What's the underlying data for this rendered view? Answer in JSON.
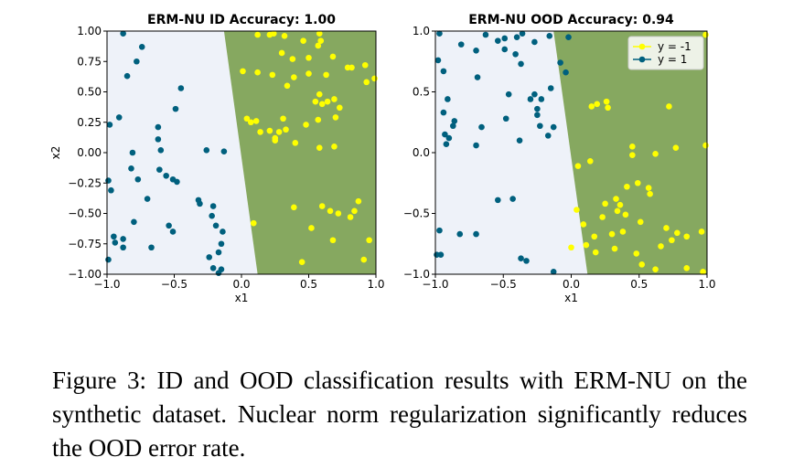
{
  "colors": {
    "yellow_class": "#ffff00",
    "blue_class": "#00607e",
    "region_pos": "#eef2f9",
    "region_neg": "#86a860"
  },
  "caption": "Figure 3: ID and OOD classification results with ERM-NU on the synthetic dataset. Nuclear norm regularization significantly reduces the OOD error rate.",
  "chart_data": [
    {
      "type": "scatter",
      "title": "ERM-NU ID Accuracy: 1.00",
      "xlabel": "x1",
      "ylabel": "x2",
      "xlim": [
        -1.0,
        1.0
      ],
      "ylim": [
        -1.0,
        1.0
      ],
      "xticks": [
        "−1.0",
        "−0.5",
        "0.0",
        "0.5",
        "1.0"
      ],
      "yticks": [
        "−1.00",
        "−0.75",
        "−0.50",
        "−0.25",
        "0.00",
        "0.25",
        "0.50",
        "0.75",
        "1.00"
      ],
      "ytick_values": [
        -1.0,
        -0.75,
        -0.5,
        -0.25,
        0.0,
        0.25,
        0.5,
        0.75,
        1.0
      ],
      "grid": false,
      "decision_boundary": {
        "top_x": -0.13,
        "bottom_x": 0.12
      },
      "series": [
        {
          "label": "y = -1",
          "points": [
            [
              0.12,
              0.97
            ],
            [
              0.21,
              0.97
            ],
            [
              0.24,
              0.98
            ],
            [
              0.32,
              0.96
            ],
            [
              0.58,
              0.98
            ],
            [
              0.59,
              0.92
            ],
            [
              0.46,
              0.92
            ],
            [
              0.57,
              0.88
            ],
            [
              0.3,
              0.82
            ],
            [
              0.38,
              0.77
            ],
            [
              0.5,
              0.78
            ],
            [
              0.68,
              0.79
            ],
            [
              0.79,
              0.7
            ],
            [
              0.82,
              0.7
            ],
            [
              0.92,
              0.72
            ],
            [
              0.93,
              0.58
            ],
            [
              0.99,
              0.61
            ],
            [
              0.01,
              0.67
            ],
            [
              0.12,
              0.66
            ],
            [
              0.23,
              0.64
            ],
            [
              0.39,
              0.62
            ],
            [
              0.5,
              0.65
            ],
            [
              0.63,
              0.64
            ],
            [
              0.34,
              0.55
            ],
            [
              0.58,
              0.48
            ],
            [
              0.55,
              0.42
            ],
            [
              0.6,
              0.4
            ],
            [
              0.64,
              0.42
            ],
            [
              0.69,
              0.44
            ],
            [
              0.73,
              0.37
            ],
            [
              0.7,
              0.29
            ],
            [
              0.57,
              0.27
            ],
            [
              0.48,
              0.23
            ],
            [
              0.31,
              0.28
            ],
            [
              0.33,
              0.19
            ],
            [
              0.28,
              0.17
            ],
            [
              0.25,
              0.12
            ],
            [
              0.21,
              0.18
            ],
            [
              0.04,
              0.28
            ],
            [
              0.07,
              0.25
            ],
            [
              0.11,
              0.26
            ],
            [
              0.14,
              0.17
            ],
            [
              0.25,
              0.1
            ],
            [
              0.4,
              0.08
            ],
            [
              0.58,
              0.04
            ],
            [
              0.69,
              0.05
            ],
            [
              0.6,
              -0.44
            ],
            [
              0.66,
              -0.48
            ],
            [
              0.72,
              -0.5
            ],
            [
              0.81,
              -0.53
            ],
            [
              0.84,
              -0.48
            ],
            [
              0.87,
              -0.4
            ],
            [
              0.95,
              -0.72
            ],
            [
              0.39,
              -0.45
            ],
            [
              0.09,
              -0.58
            ],
            [
              0.52,
              -0.62
            ],
            [
              0.91,
              -0.88
            ],
            [
              0.68,
              -0.72
            ],
            [
              0.45,
              -0.9
            ]
          ]
        },
        {
          "label": "y = 1",
          "points": [
            [
              -0.88,
              0.98
            ],
            [
              -0.74,
              0.87
            ],
            [
              -0.78,
              0.75
            ],
            [
              -0.85,
              0.63
            ],
            [
              -0.45,
              0.53
            ],
            [
              -0.98,
              0.23
            ],
            [
              -0.91,
              0.29
            ],
            [
              -0.49,
              0.36
            ],
            [
              -0.62,
              0.21
            ],
            [
              -0.62,
              0.11
            ],
            [
              -0.81,
              0.0
            ],
            [
              -0.6,
              0.02
            ],
            [
              -0.82,
              -0.13
            ],
            [
              -0.99,
              -0.23
            ],
            [
              -0.97,
              -0.31
            ],
            [
              -0.61,
              -0.14
            ],
            [
              -0.56,
              -0.19
            ],
            [
              -0.51,
              -0.22
            ],
            [
              -0.48,
              -0.24
            ],
            [
              -0.77,
              -0.22
            ],
            [
              -0.7,
              -0.38
            ],
            [
              -0.32,
              -0.39
            ],
            [
              -0.31,
              -0.42
            ],
            [
              -0.54,
              -0.6
            ],
            [
              -0.51,
              -0.65
            ],
            [
              -0.8,
              -0.57
            ],
            [
              -0.88,
              -0.71
            ],
            [
              -0.95,
              -0.69
            ],
            [
              -0.94,
              -0.74
            ],
            [
              -0.67,
              -0.78
            ],
            [
              -0.88,
              -0.78
            ],
            [
              -0.99,
              -0.88
            ],
            [
              -0.21,
              -0.44
            ],
            [
              -0.22,
              -0.52
            ],
            [
              -0.19,
              -0.6
            ],
            [
              -0.14,
              -0.65
            ],
            [
              -0.15,
              -0.75
            ],
            [
              -0.17,
              -0.82
            ],
            [
              -0.24,
              -0.86
            ],
            [
              -0.21,
              -0.95
            ],
            [
              -0.15,
              -0.96
            ],
            [
              -0.17,
              -0.99
            ],
            [
              -0.26,
              0.02
            ],
            [
              -0.13,
              0.01
            ]
          ]
        }
      ]
    },
    {
      "type": "scatter",
      "title": "ERM-NU OOD Accuracy: 0.94",
      "xlabel": "x1",
      "xlim": [
        -1.0,
        1.0
      ],
      "ylim": [
        -1.0,
        1.0
      ],
      "xticks": [
        "−1.0",
        "−0.5",
        "0.0",
        "0.5",
        "1.0"
      ],
      "yticks": [
        "−1.0",
        "−0.5",
        "0.0",
        "0.5",
        "1.0"
      ],
      "ytick_values": [
        -1.0,
        -0.5,
        0.0,
        0.5,
        1.0
      ],
      "grid": false,
      "legend": {
        "position": "upper right",
        "entries": [
          "y = -1",
          "y = 1"
        ]
      },
      "decision_boundary": {
        "top_x": -0.13,
        "bottom_x": 0.12
      },
      "series": [
        {
          "label": "y = -1",
          "points": [
            [
              0.99,
              0.97
            ],
            [
              0.19,
              0.4
            ],
            [
              0.15,
              0.38
            ],
            [
              0.26,
              0.42
            ],
            [
              0.27,
              0.37
            ],
            [
              0.72,
              0.38
            ],
            [
              0.45,
              0.05
            ],
            [
              0.77,
              0.04
            ],
            [
              0.99,
              0.06
            ],
            [
              0.45,
              -0.02
            ],
            [
              0.62,
              -0.01
            ],
            [
              0.05,
              -0.11
            ],
            [
              0.14,
              -0.07
            ],
            [
              0.41,
              -0.28
            ],
            [
              0.49,
              -0.25
            ],
            [
              0.57,
              -0.29
            ],
            [
              0.58,
              -0.34
            ],
            [
              0.33,
              -0.38
            ],
            [
              0.36,
              -0.43
            ],
            [
              0.25,
              -0.42
            ],
            [
              0.23,
              -0.53
            ],
            [
              0.34,
              -0.48
            ],
            [
              0.4,
              -0.51
            ],
            [
              0.51,
              -0.57
            ],
            [
              0.7,
              -0.62
            ],
            [
              0.78,
              -0.66
            ],
            [
              0.85,
              -0.69
            ],
            [
              0.96,
              -0.65
            ],
            [
              0.04,
              -0.47
            ],
            [
              0.09,
              -0.59
            ],
            [
              0.17,
              -0.69
            ],
            [
              0.3,
              -0.67
            ],
            [
              0.38,
              -0.65
            ],
            [
              0.18,
              -0.82
            ],
            [
              0.32,
              -0.79
            ],
            [
              0.48,
              -0.83
            ],
            [
              0.66,
              -0.77
            ],
            [
              0.74,
              -0.72
            ],
            [
              0.97,
              -0.98
            ],
            [
              0.85,
              -0.95
            ],
            [
              0.52,
              -0.92
            ],
            [
              0.62,
              -0.96
            ],
            [
              0.11,
              -0.76
            ],
            [
              0.0,
              -0.78
            ]
          ]
        },
        {
          "label": "y = 1",
          "points": [
            [
              -0.97,
              0.98
            ],
            [
              -0.63,
              0.97
            ],
            [
              -0.54,
              0.92
            ],
            [
              -0.49,
              0.94
            ],
            [
              -0.4,
              0.95
            ],
            [
              -0.36,
              0.98
            ],
            [
              -0.27,
              0.91
            ],
            [
              -0.16,
              0.96
            ],
            [
              -0.02,
              0.95
            ],
            [
              -0.81,
              0.89
            ],
            [
              -0.7,
              0.84
            ],
            [
              -0.49,
              0.85
            ],
            [
              -0.41,
              0.81
            ],
            [
              -0.37,
              0.73
            ],
            [
              -0.08,
              0.74
            ],
            [
              -0.04,
              0.66
            ],
            [
              -0.98,
              0.76
            ],
            [
              -0.94,
              0.67
            ],
            [
              -0.69,
              0.62
            ],
            [
              -0.91,
              0.44
            ],
            [
              -0.94,
              0.33
            ],
            [
              -0.86,
              0.26
            ],
            [
              -0.93,
              0.15
            ],
            [
              -0.9,
              0.12
            ],
            [
              -0.92,
              0.07
            ],
            [
              -0.7,
              0.06
            ],
            [
              -0.46,
              0.48
            ],
            [
              -0.3,
              0.44
            ],
            [
              -0.22,
              0.44
            ],
            [
              -0.25,
              0.36
            ],
            [
              -0.25,
              0.31
            ],
            [
              -0.23,
              0.22
            ],
            [
              -0.17,
              0.14
            ],
            [
              -0.13,
              0.21
            ],
            [
              -0.38,
              0.1
            ],
            [
              -0.66,
              0.21
            ],
            [
              -0.97,
              -0.64
            ],
            [
              -0.87,
              0.22
            ],
            [
              -0.99,
              -0.84
            ],
            [
              -0.96,
              -0.84
            ],
            [
              -0.7,
              -0.67
            ],
            [
              -0.54,
              -0.39
            ],
            [
              -0.43,
              -0.38
            ],
            [
              -0.37,
              -0.87
            ],
            [
              -0.33,
              -0.89
            ],
            [
              -0.13,
              -0.98
            ],
            [
              -0.82,
              -0.67
            ],
            [
              -0.15,
              0.53
            ],
            [
              -0.27,
              0.48
            ],
            [
              -0.48,
              0.28
            ]
          ]
        }
      ]
    }
  ]
}
